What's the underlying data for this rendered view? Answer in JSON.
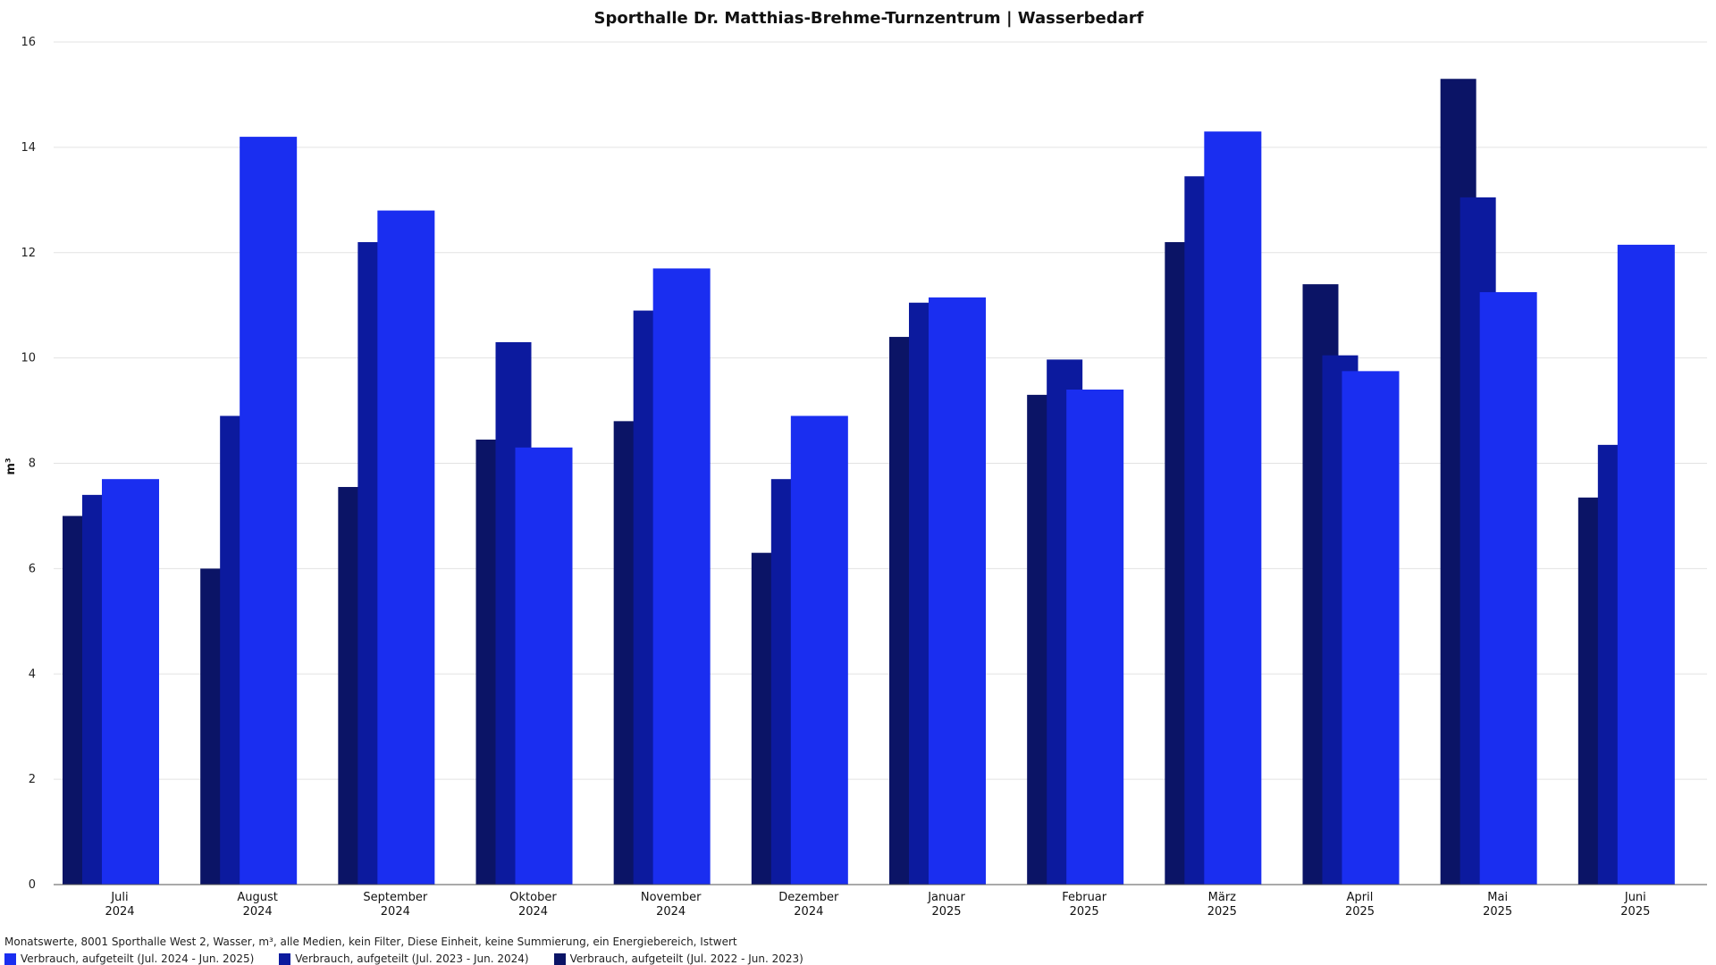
{
  "chart_data": {
    "type": "bar",
    "title": "Sporthalle Dr. Matthias-Brehme-Turnzentrum | Wasserbedarf",
    "ylabel": "m³",
    "xlabel": "",
    "ylim": [
      0,
      16
    ],
    "yticks": [
      0,
      2,
      4,
      6,
      8,
      10,
      12,
      14,
      16
    ],
    "grid": true,
    "legend_placement": "bottom-left",
    "categories": [
      {
        "month": "Juli",
        "year": "2024"
      },
      {
        "month": "August",
        "year": "2024"
      },
      {
        "month": "September",
        "year": "2024"
      },
      {
        "month": "Oktober",
        "year": "2024"
      },
      {
        "month": "November",
        "year": "2024"
      },
      {
        "month": "Dezember",
        "year": "2024"
      },
      {
        "month": "Januar",
        "year": "2025"
      },
      {
        "month": "Februar",
        "year": "2025"
      },
      {
        "month": "März",
        "year": "2025"
      },
      {
        "month": "April",
        "year": "2025"
      },
      {
        "month": "Mai",
        "year": "2025"
      },
      {
        "month": "Juni",
        "year": "2025"
      }
    ],
    "series": [
      {
        "name": "Verbrauch, aufgeteilt (Jul. 2022 - Jun. 2023)",
        "color": "#0b1466",
        "values": [
          7.0,
          6.0,
          7.55,
          8.45,
          8.8,
          6.3,
          10.4,
          9.3,
          12.2,
          11.4,
          15.3,
          7.35
        ]
      },
      {
        "name": "Verbrauch, aufgeteilt (Jul. 2023 - Jun. 2024)",
        "color": "#0c1a9e",
        "values": [
          7.4,
          8.9,
          12.2,
          10.3,
          10.9,
          7.7,
          11.05,
          9.97,
          13.45,
          10.05,
          13.05,
          8.35
        ]
      },
      {
        "name": "Verbrauch, aufgeteilt (Jul. 2024 - Jun. 2025)",
        "color": "#1a2ef0",
        "values": [
          7.7,
          14.2,
          12.8,
          8.3,
          11.7,
          8.9,
          11.15,
          9.4,
          14.3,
          9.75,
          11.25,
          12.15
        ]
      }
    ]
  },
  "footnote": "Monatswerte, 8001 Sporthalle West 2, Wasser, m³, alle Medien, kein Filter, Diese Einheit, keine Summierung, ein Energiebereich, Istwert",
  "legend": [
    {
      "label": "Verbrauch, aufgeteilt (Jul. 2024 - Jun. 2025)",
      "color": "#1a2ef0"
    },
    {
      "label": "Verbrauch, aufgeteilt (Jul. 2023 - Jun. 2024)",
      "color": "#0c1a9e"
    },
    {
      "label": "Verbrauch, aufgeteilt (Jul. 2022 - Jun. 2023)",
      "color": "#0b1466"
    }
  ]
}
